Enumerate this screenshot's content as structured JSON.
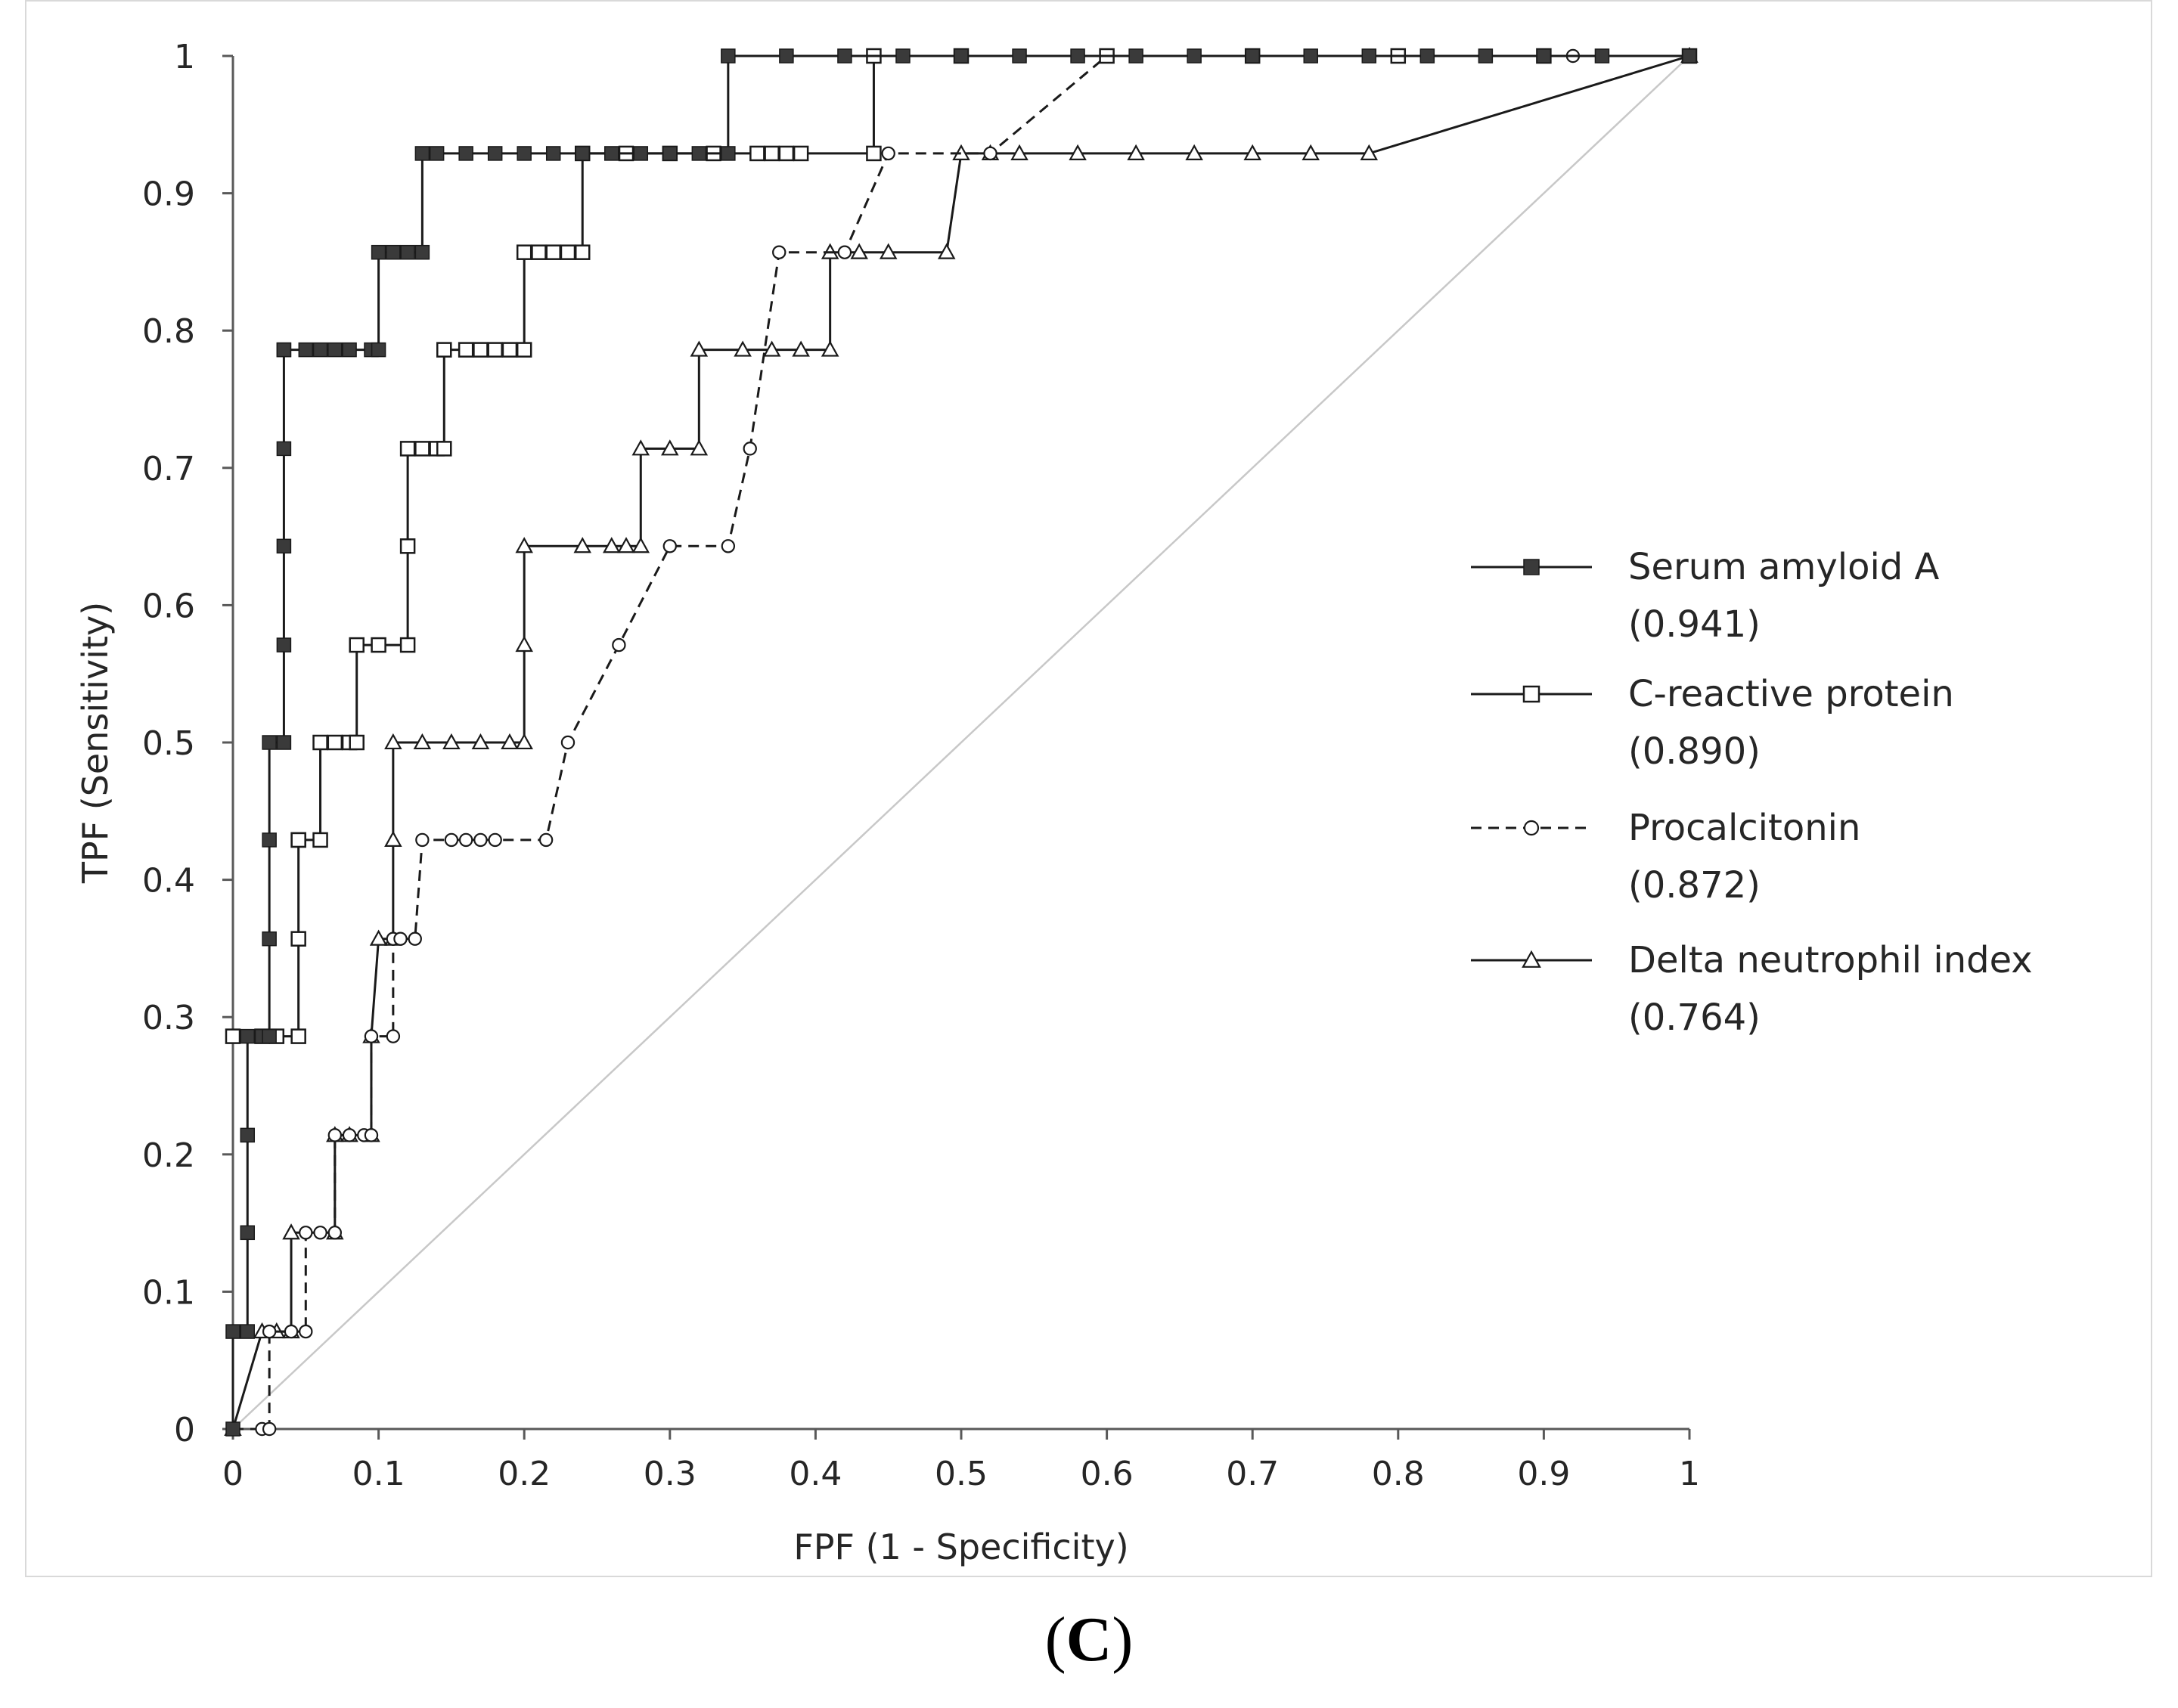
{
  "panel_label": {
    "open": "(",
    "letter": "C",
    "close": ")"
  },
  "colors": {
    "axis": "#595959",
    "reference": "#c8c8c8",
    "line": "#1a1a1a",
    "filled_marker": "#3a3a3a",
    "frame": "#d9d9d9"
  },
  "chart_data": {
    "type": "line",
    "title": "",
    "xlabel": "FPF (1 - Specificity)",
    "ylabel": "TPF (Sensitivity)",
    "xlim": [
      0,
      1
    ],
    "ylim": [
      0,
      1
    ],
    "xticks": [
      "0",
      "0.1",
      "0.2",
      "0.3",
      "0.4",
      "0.5",
      "0.6",
      "0.7",
      "0.8",
      "0.9",
      "1"
    ],
    "yticks": [
      "0",
      "0.1",
      "0.2",
      "0.3",
      "0.4",
      "0.5",
      "0.6",
      "0.7",
      "0.8",
      "0.9",
      "1"
    ],
    "grid": false,
    "legend_position": "right",
    "reference_line": {
      "x": [
        0,
        1
      ],
      "y": [
        0,
        1
      ]
    },
    "series": [
      {
        "name": "Serum amyloid A",
        "auc": "(0.941)",
        "marker": "filled-square",
        "dash": "solid",
        "x": [
          0,
          0,
          0.01,
          0.01,
          0.01,
          0.01,
          0.02,
          0.025,
          0.025,
          0.025,
          0.025,
          0.035,
          0.035,
          0.035,
          0.035,
          0.035,
          0.035,
          0.05,
          0.06,
          0.07,
          0.08,
          0.095,
          0.1,
          0.1,
          0.11,
          0.12,
          0.13,
          0.13,
          0.14,
          0.16,
          0.18,
          0.2,
          0.22,
          0.24,
          0.26,
          0.28,
          0.3,
          0.32,
          0.34,
          0.34,
          0.38,
          0.42,
          0.46,
          0.5,
          0.54,
          0.58,
          0.62,
          0.66,
          0.7,
          0.74,
          0.78,
          0.82,
          0.86,
          0.9,
          0.94,
          1
        ],
        "y": [
          0,
          0.071,
          0.071,
          0.143,
          0.214,
          0.286,
          0.286,
          0.286,
          0.357,
          0.429,
          0.5,
          0.5,
          0.571,
          0.643,
          0.714,
          0.786,
          0.786,
          0.786,
          0.786,
          0.786,
          0.786,
          0.786,
          0.786,
          0.857,
          0.857,
          0.857,
          0.857,
          0.929,
          0.929,
          0.929,
          0.929,
          0.929,
          0.929,
          0.929,
          0.929,
          0.929,
          0.929,
          0.929,
          0.929,
          1,
          1,
          1,
          1,
          1,
          1,
          1,
          1,
          1,
          1,
          1,
          1,
          1,
          1,
          1,
          1,
          1
        ]
      },
      {
        "name": "C-reactive protein",
        "auc": "(0.890)",
        "marker": "open-square",
        "dash": "solid",
        "x": [
          0,
          0.02,
          0.03,
          0.045,
          0.045,
          0.045,
          0.045,
          0.06,
          0.06,
          0.07,
          0.08,
          0.085,
          0.085,
          0.1,
          0.12,
          0.12,
          0.12,
          0.13,
          0.14,
          0.145,
          0.145,
          0.16,
          0.17,
          0.18,
          0.19,
          0.2,
          0.2,
          0.21,
          0.22,
          0.23,
          0.24,
          0.24,
          0.27,
          0.3,
          0.33,
          0.36,
          0.37,
          0.38,
          0.39,
          0.44,
          0.44,
          0.5,
          0.6,
          0.7,
          0.8,
          0.9,
          1
        ],
        "y": [
          0.286,
          0.286,
          0.286,
          0.286,
          0.357,
          0.429,
          0.429,
          0.429,
          0.5,
          0.5,
          0.5,
          0.5,
          0.571,
          0.571,
          0.571,
          0.643,
          0.714,
          0.714,
          0.714,
          0.714,
          0.786,
          0.786,
          0.786,
          0.786,
          0.786,
          0.786,
          0.857,
          0.857,
          0.857,
          0.857,
          0.857,
          0.929,
          0.929,
          0.929,
          0.929,
          0.929,
          0.929,
          0.929,
          0.929,
          0.929,
          1,
          1,
          1,
          1,
          1,
          1,
          1
        ]
      },
      {
        "name": "Procalcitonin",
        "auc": "(0.872)",
        "marker": "open-circle",
        "dash": "dashed",
        "x": [
          0,
          0.02,
          0.025,
          0.025,
          0.04,
          0.05,
          0.05,
          0.06,
          0.07,
          0.07,
          0.08,
          0.09,
          0.095,
          0.095,
          0.11,
          0.11,
          0.115,
          0.125,
          0.13,
          0.15,
          0.16,
          0.17,
          0.18,
          0.215,
          0.23,
          0.265,
          0.3,
          0.34,
          0.355,
          0.375,
          0.42,
          0.45,
          0.52,
          0.6,
          0.7,
          0.8,
          0.92,
          1
        ],
        "y": [
          0,
          0,
          0,
          0.071,
          0.071,
          0.071,
          0.143,
          0.143,
          0.143,
          0.214,
          0.214,
          0.214,
          0.214,
          0.286,
          0.286,
          0.357,
          0.357,
          0.357,
          0.429,
          0.429,
          0.429,
          0.429,
          0.429,
          0.429,
          0.5,
          0.571,
          0.643,
          0.643,
          0.714,
          0.857,
          0.857,
          0.929,
          0.929,
          1,
          1,
          1,
          1,
          1
        ]
      },
      {
        "name": "Delta neutrophil index",
        "auc": "(0.764)",
        "marker": "open-triangle",
        "dash": "solid",
        "x": [
          0,
          0.02,
          0.03,
          0.04,
          0.04,
          0.07,
          0.07,
          0.08,
          0.095,
          0.095,
          0.1,
          0.11,
          0.11,
          0.11,
          0.13,
          0.15,
          0.17,
          0.19,
          0.2,
          0.2,
          0.2,
          0.24,
          0.26,
          0.27,
          0.28,
          0.28,
          0.3,
          0.32,
          0.32,
          0.35,
          0.37,
          0.39,
          0.41,
          0.41,
          0.43,
          0.45,
          0.49,
          0.5,
          0.52,
          0.54,
          0.58,
          0.62,
          0.66,
          0.7,
          0.74,
          0.78,
          1
        ],
        "y": [
          0,
          0.071,
          0.071,
          0.071,
          0.143,
          0.143,
          0.214,
          0.214,
          0.214,
          0.286,
          0.357,
          0.357,
          0.429,
          0.5,
          0.5,
          0.5,
          0.5,
          0.5,
          0.5,
          0.571,
          0.643,
          0.643,
          0.643,
          0.643,
          0.643,
          0.714,
          0.714,
          0.714,
          0.786,
          0.786,
          0.786,
          0.786,
          0.786,
          0.857,
          0.857,
          0.857,
          0.857,
          0.929,
          0.929,
          0.929,
          0.929,
          0.929,
          0.929,
          0.929,
          0.929,
          0.929,
          1
        ]
      }
    ]
  }
}
